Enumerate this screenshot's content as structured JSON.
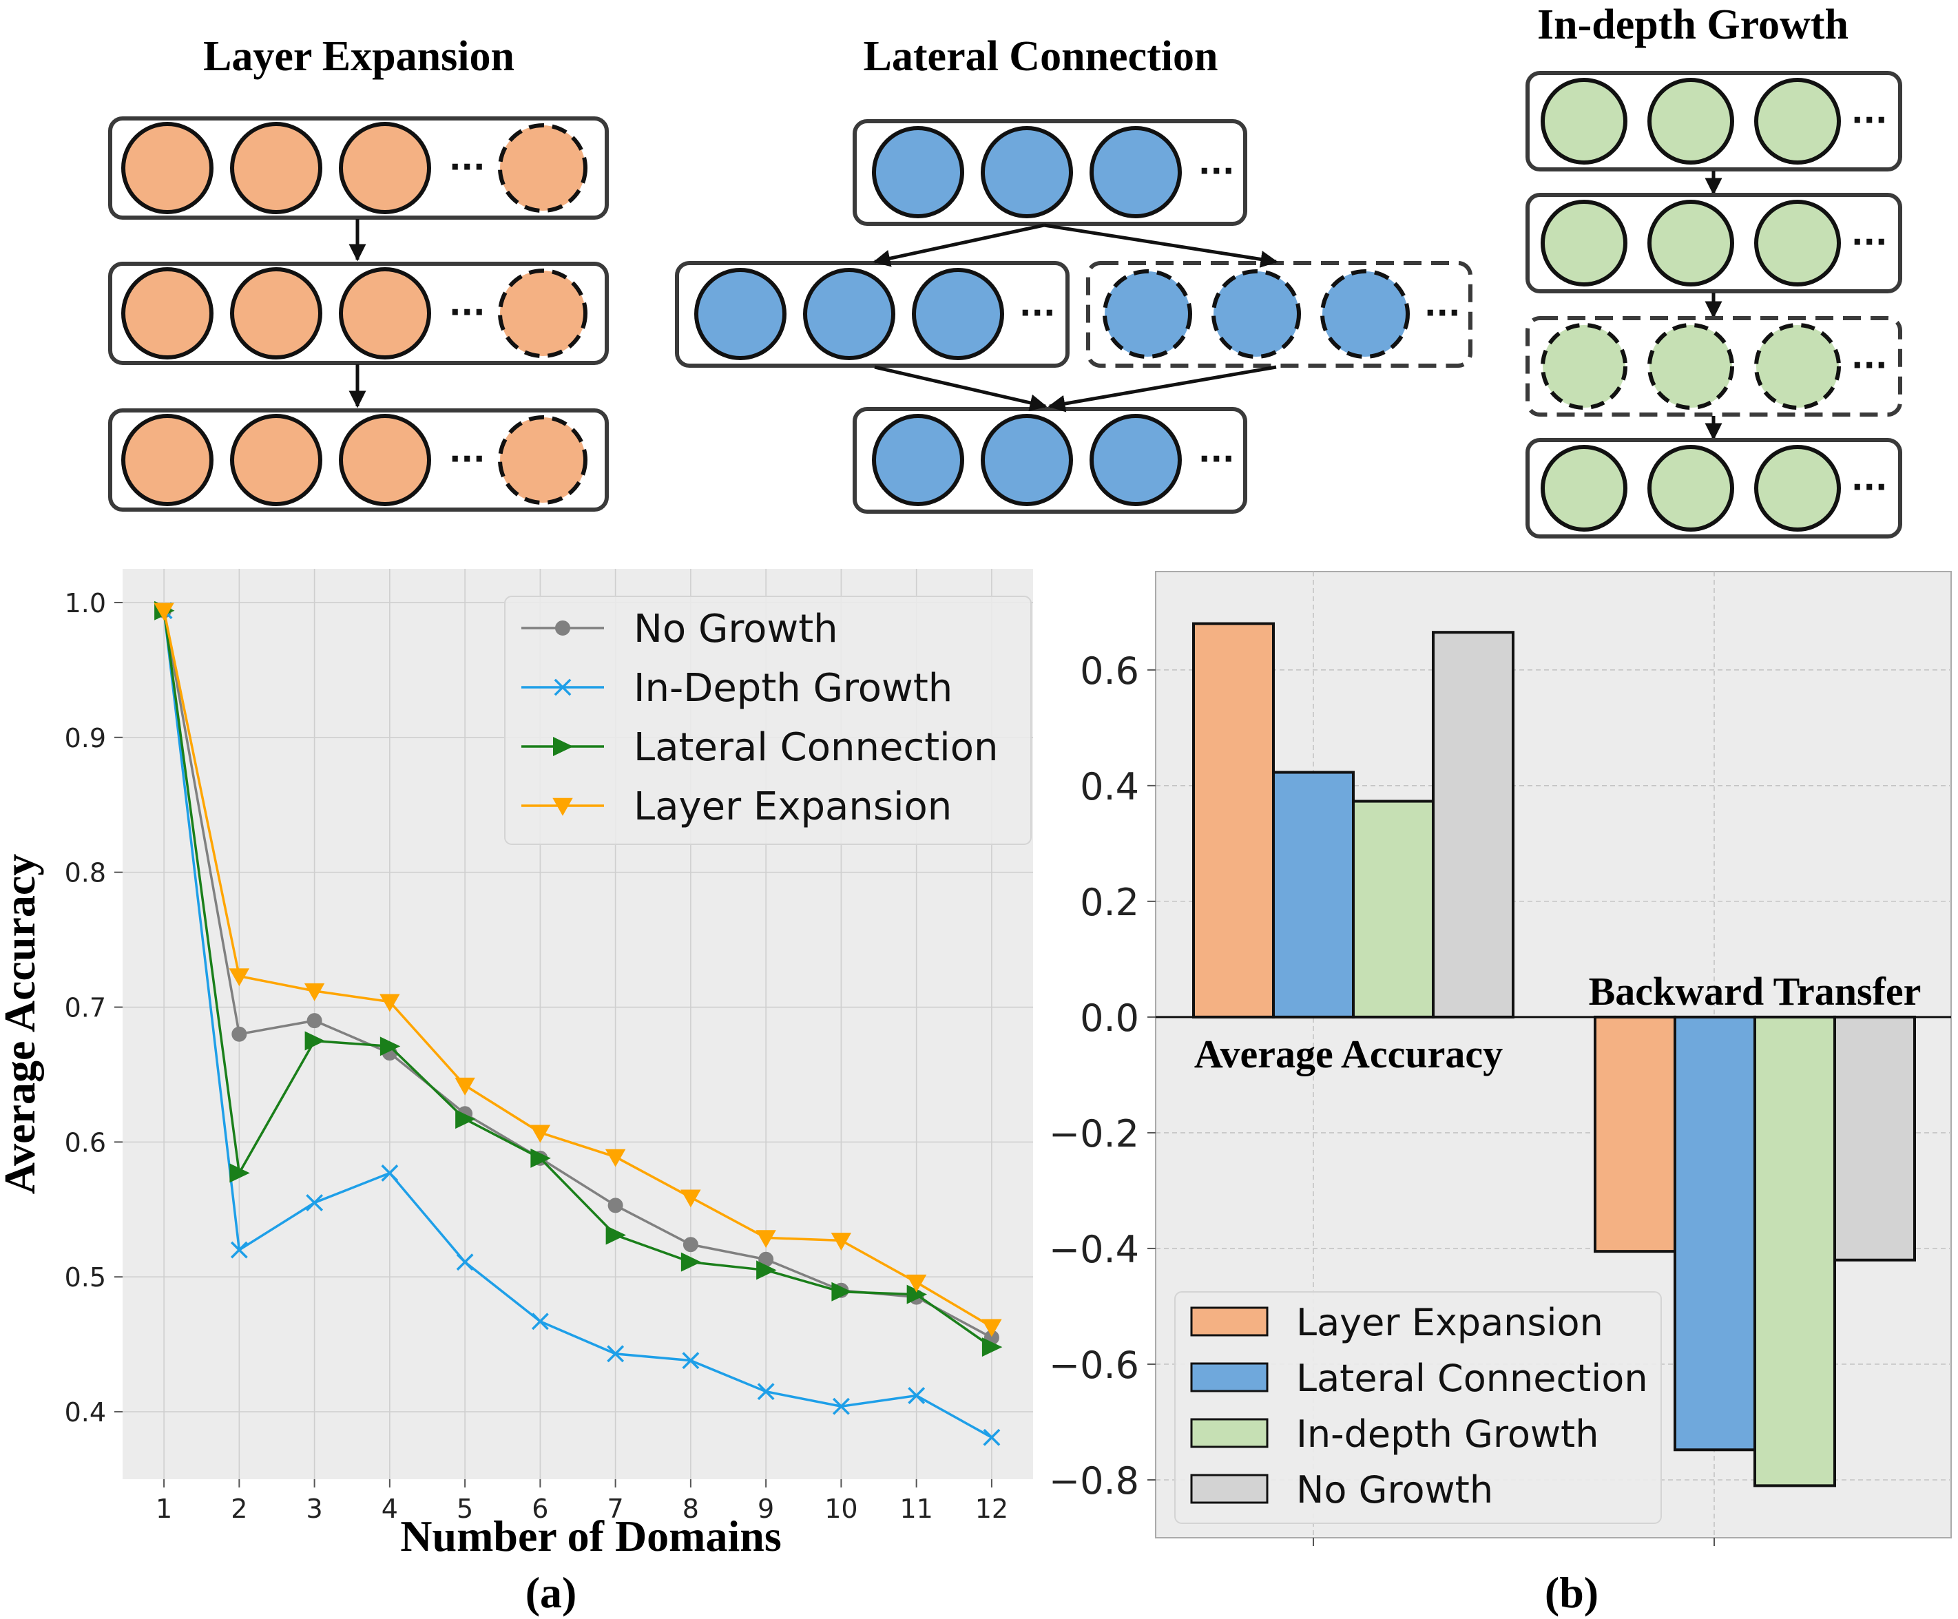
{
  "top_diagrams": {
    "layer_expansion": {
      "title": "Layer Expansion",
      "color": "#F4B183"
    },
    "lateral_connection": {
      "title": "Lateral Connection",
      "color": "#6FA8DC"
    },
    "in_depth_growth": {
      "title": "In-depth Growth",
      "color": "#C6E0B4"
    },
    "ellipsis": "···"
  },
  "chart_data": [
    {
      "id": "a",
      "type": "line",
      "panel_label": "(a)",
      "xlabel": "Number of Domains",
      "ylabel": "Average Accuracy",
      "x": [
        1,
        2,
        3,
        4,
        5,
        6,
        7,
        8,
        9,
        10,
        11,
        12
      ],
      "xlim": [
        0.45,
        12.55
      ],
      "ylim": [
        0.35,
        1.025
      ],
      "yticks": [
        0.4,
        0.5,
        0.6,
        0.7,
        0.8,
        0.9,
        1.0
      ],
      "ytick_labels": [
        "0.4",
        "0.5",
        "0.6",
        "0.7",
        "0.8",
        "0.9",
        "1.0"
      ],
      "grid": true,
      "legend_position": "top-right",
      "series": [
        {
          "name": "No Growth",
          "color": "#808080",
          "marker": "circle",
          "values": [
            0.994,
            0.68,
            0.69,
            0.666,
            0.621,
            0.588,
            0.553,
            0.524,
            0.513,
            0.49,
            0.485,
            0.455
          ]
        },
        {
          "name": "In-Depth Growth",
          "color": "#1E9FE8",
          "marker": "x",
          "values": [
            0.994,
            0.52,
            0.555,
            0.577,
            0.511,
            0.467,
            0.443,
            0.438,
            0.415,
            0.404,
            0.412,
            0.381
          ]
        },
        {
          "name": "Lateral Connection",
          "color": "#1A7F1A",
          "marker": "triangle-right",
          "values": [
            0.994,
            0.577,
            0.675,
            0.671,
            0.617,
            0.588,
            0.531,
            0.511,
            0.505,
            0.489,
            0.487,
            0.448
          ]
        },
        {
          "name": "Layer Expansion",
          "color": "#FFA500",
          "marker": "triangle-down",
          "values": [
            0.994,
            0.723,
            0.712,
            0.704,
            0.642,
            0.607,
            0.589,
            0.559,
            0.529,
            0.527,
            0.496,
            0.463
          ]
        }
      ]
    },
    {
      "id": "b",
      "type": "bar",
      "panel_label": "(b)",
      "categories": [
        "Average Accuracy",
        "Backward Transfer"
      ],
      "ylim": [
        -0.9,
        0.77
      ],
      "yticks": [
        -0.8,
        -0.6,
        -0.4,
        -0.2,
        0.0,
        0.2,
        0.4,
        0.6
      ],
      "ytick_labels": [
        "−0.8",
        "−0.6",
        "−0.4",
        "−0.2",
        "0.0",
        "0.2",
        "0.4",
        "0.6"
      ],
      "grid": true,
      "legend_position": "bottom-left",
      "series": [
        {
          "name": "Layer Expansion",
          "color": "#F4B183",
          "values": [
            0.68,
            -0.405
          ]
        },
        {
          "name": "Lateral Connection",
          "color": "#6FA8DC",
          "values": [
            0.423,
            -0.748
          ]
        },
        {
          "name": "In-depth Growth",
          "color": "#C6E0B4",
          "values": [
            0.373,
            -0.81
          ]
        },
        {
          "name": "No Growth",
          "color": "#D3D3D3",
          "values": [
            0.665,
            -0.42
          ]
        }
      ]
    }
  ]
}
